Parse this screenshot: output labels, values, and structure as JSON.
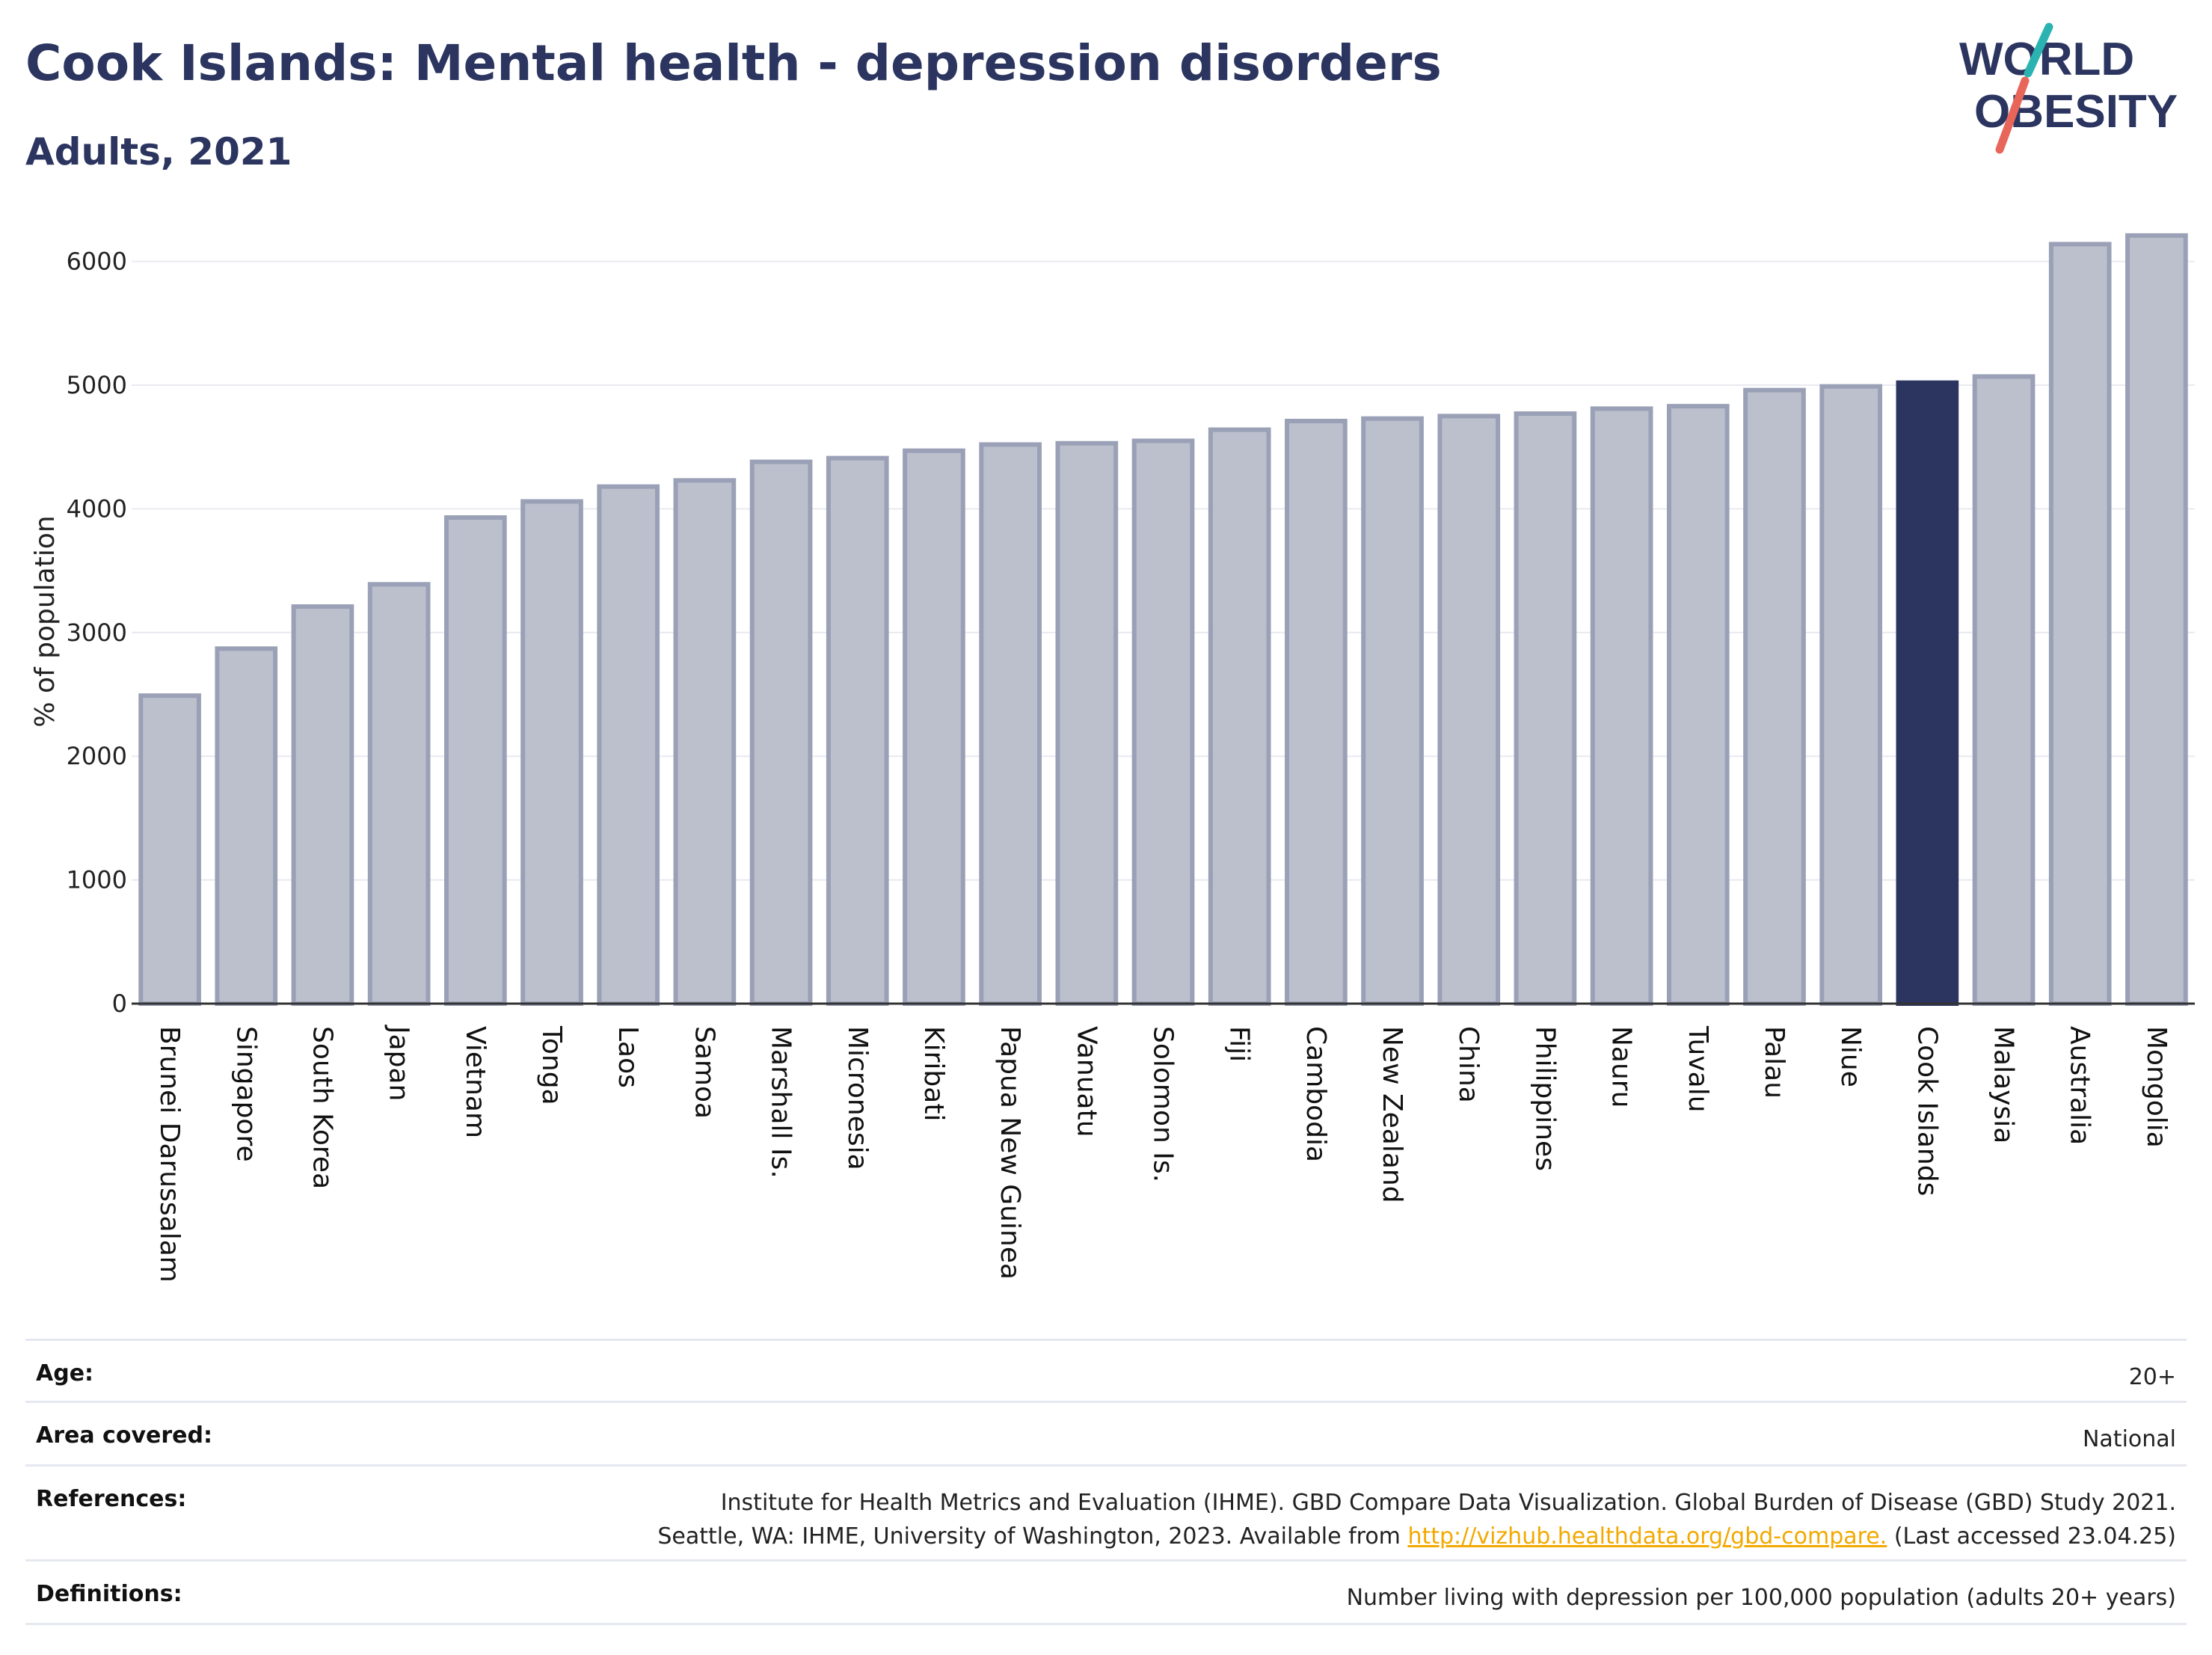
{
  "header": {
    "title": "Cook Islands: Mental health - depression disorders",
    "subtitle": "Adults, 2021"
  },
  "logo": {
    "line1": "WORLD",
    "line2": "OBESITY",
    "colors": {
      "text": "#2b3560",
      "slash_top": "#2ab3b1",
      "slash_bottom": "#e8655a"
    }
  },
  "chart_data": {
    "type": "bar",
    "title": "Cook Islands: Mental health - depression disorders",
    "subtitle": "Adults, 2021",
    "xlabel": "",
    "ylabel": "% of population",
    "ylim": [
      0,
      6300
    ],
    "yticks": [
      0,
      1000,
      2000,
      3000,
      4000,
      5000,
      6000
    ],
    "grid": true,
    "highlight": "Cook Islands",
    "colors": {
      "bar": "#bcc0cd",
      "bar_edge": "#9aa0b6",
      "highlight": "#2b3560",
      "axis": "#333333",
      "grid": "#e9eaf0"
    },
    "categories": [
      "Brunei Darussalam",
      "Singapore",
      "South Korea",
      "Japan",
      "Vietnam",
      "Tonga",
      "Laos",
      "Samoa",
      "Marshall Is.",
      "Micronesia",
      "Kiribati",
      "Papua New Guinea",
      "Vanuatu",
      "Solomon Is.",
      "Fiji",
      "Cambodia",
      "New Zealand",
      "China",
      "Philippines",
      "Nauru",
      "Tuvalu",
      "Palau",
      "Niue",
      "Cook Islands",
      "Malaysia",
      "Australia",
      "Mongolia"
    ],
    "values": [
      2490,
      2870,
      3210,
      3390,
      3930,
      4060,
      4180,
      4230,
      4380,
      4410,
      4470,
      4520,
      4530,
      4550,
      4640,
      4710,
      4730,
      4750,
      4770,
      4810,
      4830,
      4960,
      4990,
      5020,
      5070,
      6140,
      6210
    ]
  },
  "meta": {
    "rows": [
      {
        "label": "Age:",
        "value": [
          "20+"
        ]
      },
      {
        "label": "Area covered:",
        "value": [
          "National"
        ]
      },
      {
        "label": "References:",
        "value": [
          "Institute for Health Metrics and Evaluation (IHME). GBD Compare Data Visualization. Global Burden of Disease (GBD) Study 2021.",
          "Seattle, WA: IHME, University of Washington, 2023. Available from "
        ],
        "link": "http://vizhub.healthdata.org/gbd-compare.",
        "suffix": " (Last accessed 23.04.25)"
      },
      {
        "label": "Definitions:",
        "value": [
          "Number living with depression per 100,000 population (adults 20+ years)"
        ]
      }
    ]
  }
}
